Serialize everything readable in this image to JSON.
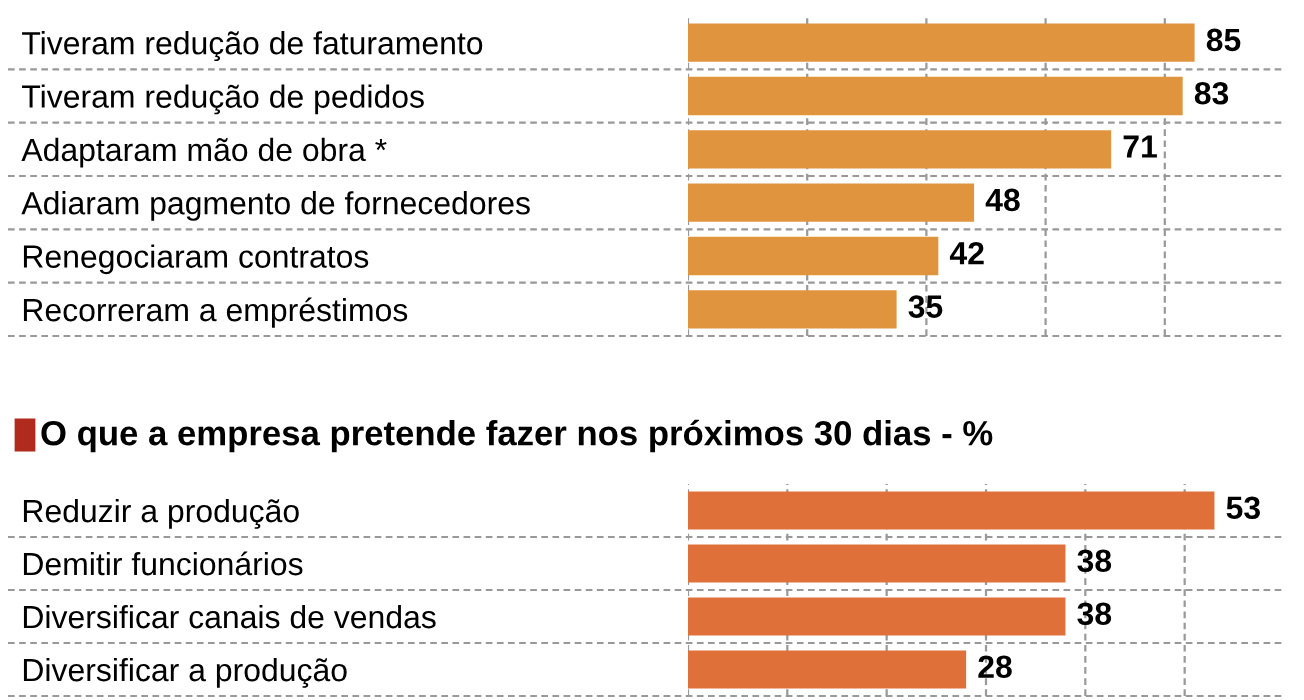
{
  "chart_data": [
    {
      "type": "bar",
      "orientation": "horizontal",
      "categories": [
        "Tiveram redução de faturamento",
        "Tiveram redução de pedidos",
        "Adaptaram mão de obra *",
        "Adiaram pagmento de fornecedores",
        "Renegociaram contratos",
        "Recorreram a empréstimos"
      ],
      "values": [
        85,
        83,
        71,
        48,
        42,
        35
      ],
      "color": "#e0943e",
      "data_labels": true,
      "xlim": [
        0,
        100
      ],
      "xticks": [
        {
          "value": 0,
          "label": null
        },
        {
          "value": 20,
          "label": null
        },
        {
          "value": 40,
          "label": null
        },
        {
          "value": 60,
          "label": null
        },
        {
          "value": 80,
          "label": null
        }
      ],
      "tick_labels": "y",
      "grid": true,
      "legend": false
    },
    {
      "type": "bar",
      "orientation": "horizontal",
      "title": "O que a empresa pretende fazer nos próximos 30 dias - %",
      "categories": [
        "Reduzir a produção",
        "Demitir funcionários",
        "Diversificar canais de vendas",
        "Diversificar a produção"
      ],
      "values": [
        53,
        38,
        38,
        28
      ],
      "color": "#e0703a",
      "data_labels": true,
      "xlim": [
        0,
        60
      ],
      "xticks": [
        {
          "value": 0,
          "label": null
        },
        {
          "value": 10,
          "label": null
        },
        {
          "value": 20,
          "label": null
        },
        {
          "value": 30,
          "label": null
        },
        {
          "value": 40,
          "label": null
        },
        {
          "value": 50,
          "label": null
        }
      ],
      "tick_labels": "y",
      "grid": true,
      "legend": false
    }
  ]
}
